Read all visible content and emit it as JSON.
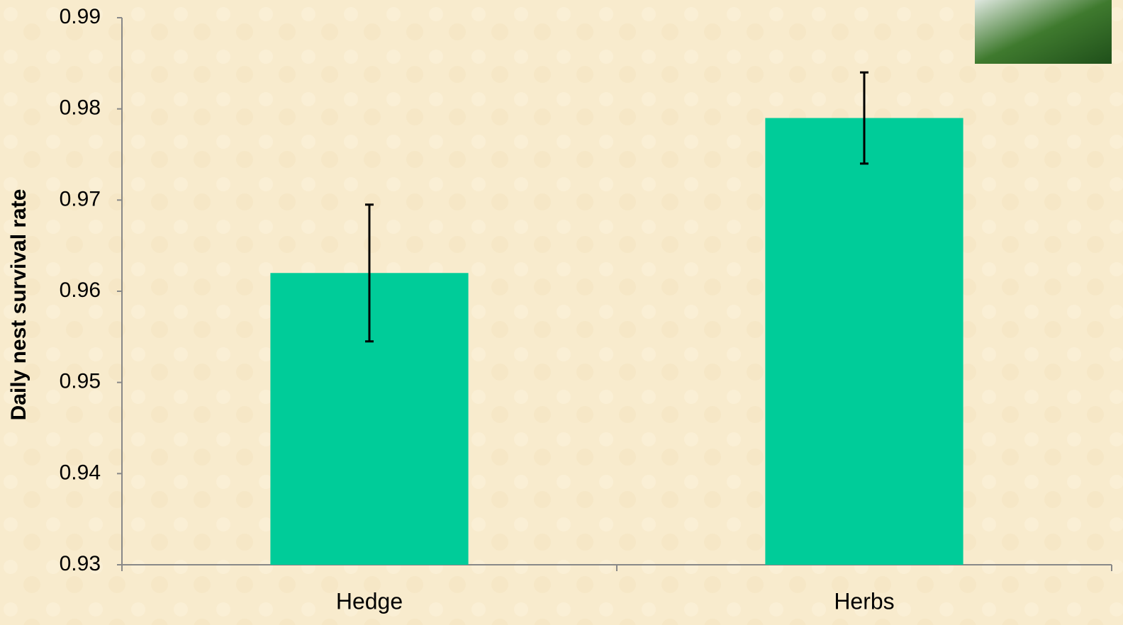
{
  "chart_data": {
    "type": "bar",
    "y_label": "Daily nest survival rate",
    "categories": [
      "Hedge",
      "Herbs"
    ],
    "values": [
      0.962,
      0.979
    ],
    "errors": [
      0.0075,
      0.005
    ],
    "color": "#00cc99",
    "ylim": [
      0.93,
      0.99
    ],
    "yticks": [
      0.93,
      0.94,
      0.95,
      0.96,
      0.97,
      0.98,
      0.99
    ],
    "grid": false
  }
}
